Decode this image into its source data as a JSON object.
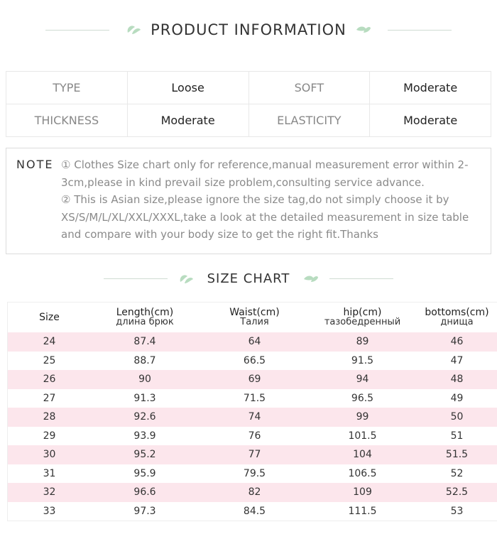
{
  "header": {
    "title": "PRODUCT INFORMATION"
  },
  "info": {
    "rows": [
      [
        "TYPE",
        "Loose",
        "SOFT",
        "Moderate"
      ],
      [
        "THICKNESS",
        "Moderate",
        "ELASTICITY",
        "Moderate"
      ]
    ]
  },
  "note": {
    "label": "NOTE",
    "items": [
      "① Clothes Size chart only for reference,manual measurement error within 2-3cm,please in kind prevail size problem,consulting service advance.",
      "② This is Asian size,please ignore the size tag,do not simply choose it by XS/S/M/L/XL/XXL/XXXL,take a look at the detailed measurement in size table and compare with your body size to get the right fit.Thanks"
    ]
  },
  "size_chart": {
    "title": "SIZE CHART",
    "columns": [
      {
        "label": "Size"
      },
      {
        "label": "Length(cm)",
        "sub": "длина брюк"
      },
      {
        "label": "Waist(cm)",
        "sub": "Талия"
      },
      {
        "label": "hip(cm)",
        "sub": "тазобедренный"
      },
      {
        "label": "bottoms(cm)",
        "sub": "днища"
      }
    ],
    "rows": [
      [
        24,
        87.4,
        64,
        89,
        46
      ],
      [
        25,
        88.7,
        66.5,
        91.5,
        47
      ],
      [
        26,
        90,
        69,
        94,
        48
      ],
      [
        27,
        91.3,
        71.5,
        96.5,
        49
      ],
      [
        28,
        92.6,
        74,
        99,
        50
      ],
      [
        29,
        93.9,
        76,
        101.5,
        51
      ],
      [
        30,
        95.2,
        77,
        104,
        51.5
      ],
      [
        31,
        95.9,
        79.5,
        106.5,
        52
      ],
      [
        32,
        96.6,
        82,
        109,
        52.5
      ],
      [
        33,
        97.3,
        84.5,
        111.5,
        53
      ]
    ]
  }
}
